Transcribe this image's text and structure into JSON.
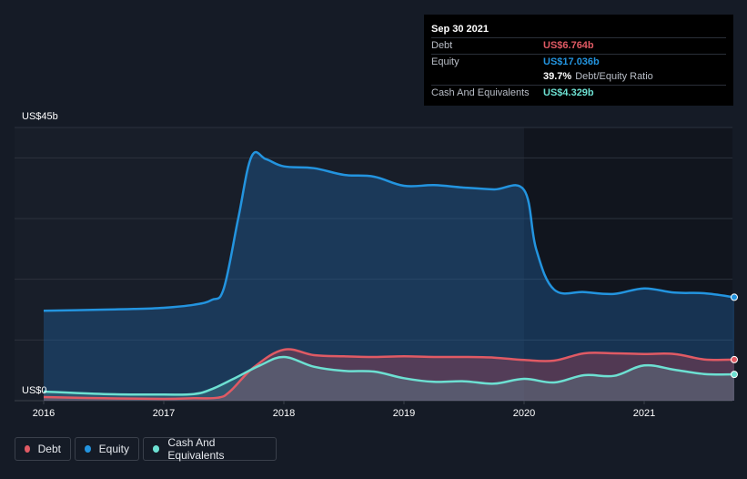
{
  "tooltip": {
    "date": "Sep 30 2021",
    "debt_label": "Debt",
    "debt_value": "US$6.764b",
    "equity_label": "Equity",
    "equity_value": "US$17.036b",
    "ratio_value": "39.7%",
    "ratio_label": "Debt/Equity Ratio",
    "cash_label": "Cash And Equivalents",
    "cash_value": "US$4.329b"
  },
  "legend": {
    "debt": "Debt",
    "equity": "Equity",
    "cash": "Cash And Equivalents"
  },
  "colors": {
    "debt": "#e05a64",
    "equity": "#2394df",
    "cash": "#6de0d2"
  },
  "chart_data": {
    "type": "area",
    "title": "",
    "ylabel": "",
    "xlabel": "",
    "y_label_top": "US$45b",
    "y_label_bottom": "US$0",
    "ylim": [
      0,
      45
    ],
    "xlim": [
      2015.75,
      2021.8
    ],
    "x_ticks": [
      {
        "x": 2016,
        "label": "2016"
      },
      {
        "x": 2017,
        "label": "2017"
      },
      {
        "x": 2018,
        "label": "2018"
      },
      {
        "x": 2019,
        "label": "2019"
      },
      {
        "x": 2020,
        "label": "2020"
      },
      {
        "x": 2021,
        "label": "2021"
      }
    ],
    "series": [
      {
        "name": "Equity",
        "key": "equity",
        "x": [
          2016.0,
          2016.5,
          2016.75,
          2017.0,
          2017.25,
          2017.4,
          2017.5,
          2017.62,
          2017.73,
          2017.85,
          2018.0,
          2018.25,
          2018.5,
          2018.75,
          2019.0,
          2019.25,
          2019.5,
          2019.75,
          2020.0,
          2020.1,
          2020.25,
          2020.5,
          2020.75,
          2021.0,
          2021.25,
          2021.5,
          2021.75
        ],
        "values": [
          14.8,
          15.0,
          15.1,
          15.3,
          15.8,
          16.6,
          18.5,
          30.0,
          40.2,
          39.8,
          38.6,
          38.3,
          37.2,
          36.9,
          35.4,
          35.5,
          35.1,
          34.8,
          34.7,
          25.0,
          18.3,
          17.9,
          17.6,
          18.5,
          17.8,
          17.7,
          17.036
        ]
      },
      {
        "name": "Debt",
        "key": "debt",
        "x": [
          2016.0,
          2016.5,
          2017.0,
          2017.25,
          2017.45,
          2017.55,
          2017.75,
          2018.0,
          2018.25,
          2018.5,
          2018.75,
          2019.0,
          2019.25,
          2019.5,
          2019.75,
          2020.0,
          2020.25,
          2020.5,
          2020.75,
          2021.0,
          2021.25,
          2021.5,
          2021.75
        ],
        "values": [
          0.6,
          0.4,
          0.3,
          0.4,
          0.5,
          1.5,
          5.5,
          8.4,
          7.5,
          7.3,
          7.2,
          7.3,
          7.2,
          7.2,
          7.1,
          6.7,
          6.6,
          7.8,
          7.8,
          7.7,
          7.7,
          6.8,
          6.764
        ]
      },
      {
        "name": "Cash And Equivalents",
        "key": "cash",
        "x": [
          2016.0,
          2016.5,
          2017.0,
          2017.25,
          2017.4,
          2017.6,
          2017.8,
          2018.0,
          2018.25,
          2018.5,
          2018.75,
          2019.0,
          2019.25,
          2019.5,
          2019.75,
          2020.0,
          2020.25,
          2020.5,
          2020.75,
          2021.0,
          2021.25,
          2021.5,
          2021.75
        ],
        "values": [
          1.5,
          1.1,
          1.0,
          1.1,
          1.9,
          3.8,
          5.8,
          7.2,
          5.6,
          4.9,
          4.8,
          3.7,
          3.1,
          3.2,
          2.8,
          3.6,
          3.0,
          4.2,
          4.1,
          5.8,
          5.1,
          4.4,
          4.329
        ]
      }
    ]
  }
}
